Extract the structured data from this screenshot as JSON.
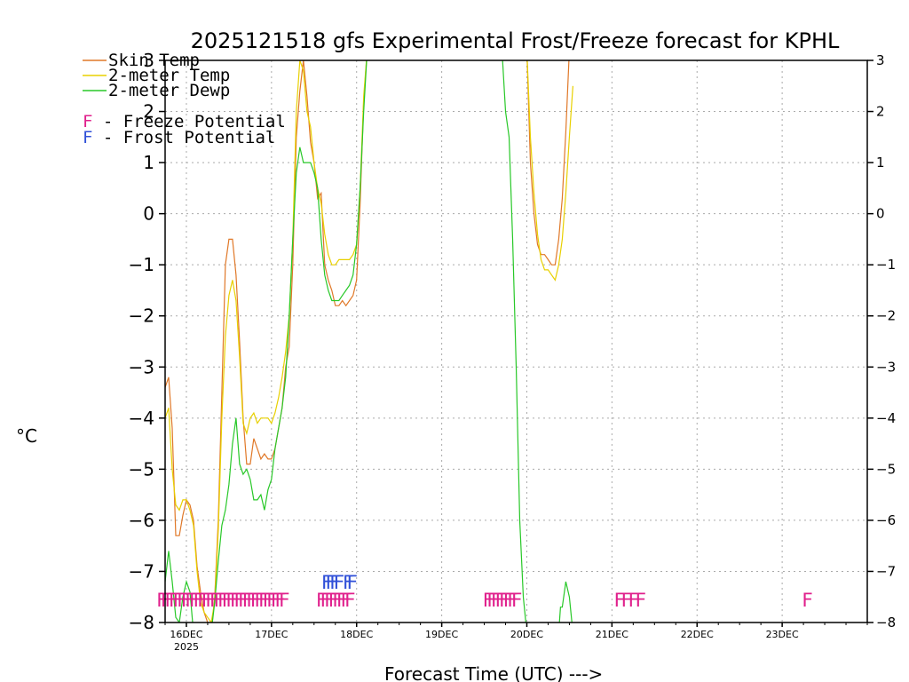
{
  "chart_data": {
    "type": "line",
    "title": "2025121518 gfs Experimental Frost/Freeze forecast for KPHL",
    "xlabel": "Forecast Time (UTC) --->",
    "ylabel": "°C",
    "ylim": [
      -8,
      3
    ],
    "xlim": [
      0,
      198
    ],
    "y_ticks": [
      "3",
      "2",
      "1",
      "0",
      "−1",
      "−2",
      "−3",
      "−4",
      "−5",
      "−6",
      "−7",
      "−8"
    ],
    "x_ticks": [
      {
        "hour": 6,
        "label": "16DEC",
        "sublabel": "2025"
      },
      {
        "hour": 30,
        "label": "17DEC"
      },
      {
        "hour": 54,
        "label": "18DEC"
      },
      {
        "hour": 78,
        "label": "19DEC"
      },
      {
        "hour": 102,
        "label": "20DEC"
      },
      {
        "hour": 126,
        "label": "21DEC"
      },
      {
        "hour": 150,
        "label": "22DEC"
      },
      {
        "hour": 174,
        "label": "23DEC"
      }
    ],
    "grid": true,
    "legend": [
      {
        "label": "Skin Temp",
        "color": "#e07828"
      },
      {
        "label": "2-meter Temp",
        "color": "#e8d000"
      },
      {
        "label": "2-meter Dewp",
        "color": "#28c828"
      }
    ],
    "legend_notes": [
      {
        "letter": "F",
        "text": " - Freeze Potential",
        "color": "#e0208c"
      },
      {
        "letter": "F",
        "text": " - Frost Potential",
        "color": "#3050d8"
      }
    ],
    "series": [
      {
        "name": "Skin Temp",
        "color": "#e07828",
        "points": [
          [
            0,
            -3.4
          ],
          [
            1,
            -3.2
          ],
          [
            2,
            -4.2
          ],
          [
            3,
            -6.3
          ],
          [
            4,
            -6.3
          ],
          [
            5,
            -5.9
          ],
          [
            6,
            -5.6
          ],
          [
            7,
            -5.7
          ],
          [
            8,
            -6.0
          ],
          [
            9,
            -6.9
          ],
          [
            10,
            -7.4
          ],
          [
            11,
            -7.8
          ],
          [
            12,
            -8.0
          ],
          [
            13,
            -8.2
          ],
          [
            14,
            -7.5
          ],
          [
            15,
            -6.0
          ],
          [
            16,
            -3.5
          ],
          [
            17,
            -1.0
          ],
          [
            18,
            -0.5
          ],
          [
            19,
            -0.5
          ],
          [
            20,
            -1.2
          ],
          [
            21,
            -2.5
          ],
          [
            22,
            -4.0
          ],
          [
            23,
            -4.9
          ],
          [
            24,
            -4.9
          ],
          [
            25,
            -4.4
          ],
          [
            26,
            -4.6
          ],
          [
            27,
            -4.8
          ],
          [
            28,
            -4.7
          ],
          [
            29,
            -4.8
          ],
          [
            30,
            -4.8
          ],
          [
            31,
            -4.6
          ],
          [
            32,
            -4.2
          ],
          [
            33,
            -3.8
          ],
          [
            34,
            -3.0
          ],
          [
            35,
            -2.6
          ],
          [
            36,
            -1.0
          ],
          [
            37,
            1.5
          ],
          [
            38,
            2.4
          ],
          [
            39,
            3.0
          ],
          [
            40,
            2.3
          ],
          [
            41,
            1.4
          ],
          [
            42,
            1.0
          ],
          [
            43,
            0.3
          ],
          [
            44,
            0.4
          ],
          [
            45,
            -1.0
          ],
          [
            46,
            -1.3
          ],
          [
            47,
            -1.5
          ],
          [
            48,
            -1.8
          ],
          [
            49,
            -1.8
          ],
          [
            50,
            -1.7
          ],
          [
            51,
            -1.8
          ],
          [
            52,
            -1.7
          ],
          [
            53,
            -1.6
          ],
          [
            54,
            -1.3
          ],
          [
            55,
            0.2
          ],
          [
            56,
            2.2
          ],
          [
            57,
            3.2
          ],
          [
            102,
            3.2
          ],
          [
            103,
            1.0
          ],
          [
            104,
            0.0
          ],
          [
            105,
            -0.6
          ],
          [
            106,
            -0.8
          ],
          [
            107,
            -0.8
          ],
          [
            108,
            -0.9
          ],
          [
            109,
            -1.0
          ],
          [
            110,
            -1.0
          ],
          [
            111,
            -0.5
          ],
          [
            112,
            0.3
          ],
          [
            113,
            1.6
          ],
          [
            114,
            3.2
          ]
        ]
      },
      {
        "name": "2-meter Temp",
        "color": "#e8d000",
        "points": [
          [
            0,
            -4.0
          ],
          [
            1,
            -3.8
          ],
          [
            2,
            -5.0
          ],
          [
            3,
            -5.7
          ],
          [
            4,
            -5.8
          ],
          [
            5,
            -5.6
          ],
          [
            6,
            -5.6
          ],
          [
            7,
            -5.8
          ],
          [
            8,
            -6.1
          ],
          [
            9,
            -7.0
          ],
          [
            10,
            -7.6
          ],
          [
            11,
            -7.8
          ],
          [
            12,
            -7.9
          ],
          [
            13,
            -8.0
          ],
          [
            14,
            -7.6
          ],
          [
            15,
            -6.2
          ],
          [
            16,
            -4.0
          ],
          [
            17,
            -2.4
          ],
          [
            18,
            -1.6
          ],
          [
            19,
            -1.3
          ],
          [
            20,
            -1.7
          ],
          [
            21,
            -2.8
          ],
          [
            22,
            -4.1
          ],
          [
            23,
            -4.3
          ],
          [
            24,
            -4.0
          ],
          [
            25,
            -3.9
          ],
          [
            26,
            -4.1
          ],
          [
            27,
            -4.0
          ],
          [
            28,
            -4.0
          ],
          [
            29,
            -4.0
          ],
          [
            30,
            -4.1
          ],
          [
            31,
            -3.9
          ],
          [
            32,
            -3.6
          ],
          [
            33,
            -3.2
          ],
          [
            34,
            -2.7
          ],
          [
            35,
            -2.0
          ],
          [
            36,
            -0.5
          ],
          [
            37,
            2.0
          ],
          [
            38,
            3.0
          ],
          [
            39,
            2.8
          ],
          [
            40,
            2.0
          ],
          [
            41,
            1.7
          ],
          [
            42,
            1.0
          ],
          [
            43,
            0.5
          ],
          [
            44,
            0.2
          ],
          [
            45,
            -0.4
          ],
          [
            46,
            -0.8
          ],
          [
            47,
            -1.0
          ],
          [
            48,
            -1.0
          ],
          [
            49,
            -0.9
          ],
          [
            50,
            -0.9
          ],
          [
            51,
            -0.9
          ],
          [
            52,
            -0.9
          ],
          [
            53,
            -0.8
          ],
          [
            54,
            -0.6
          ],
          [
            55,
            0.5
          ],
          [
            56,
            2.3
          ],
          [
            57,
            3.2
          ],
          [
            102,
            3.2
          ],
          [
            103,
            1.5
          ],
          [
            104,
            0.4
          ],
          [
            105,
            -0.4
          ],
          [
            106,
            -0.9
          ],
          [
            107,
            -1.1
          ],
          [
            108,
            -1.1
          ],
          [
            109,
            -1.2
          ],
          [
            110,
            -1.3
          ],
          [
            111,
            -1.0
          ],
          [
            112,
            -0.5
          ],
          [
            113,
            0.4
          ],
          [
            114,
            1.5
          ],
          [
            115,
            2.5
          ]
        ]
      },
      {
        "name": "2-meter Dewp",
        "color": "#28c828",
        "points": [
          [
            0,
            -7.2
          ],
          [
            1,
            -6.6
          ],
          [
            2,
            -7.2
          ],
          [
            3,
            -7.9
          ],
          [
            4,
            -8.0
          ],
          [
            5,
            -7.5
          ],
          [
            6,
            -7.2
          ],
          [
            7,
            -7.4
          ],
          [
            8,
            -8.2
          ],
          [
            13,
            -8.2
          ],
          [
            14,
            -7.6
          ],
          [
            15,
            -6.8
          ],
          [
            16,
            -6.1
          ],
          [
            17,
            -5.8
          ],
          [
            18,
            -5.3
          ],
          [
            19,
            -4.5
          ],
          [
            20,
            -4.0
          ],
          [
            21,
            -4.9
          ],
          [
            22,
            -5.1
          ],
          [
            23,
            -5.0
          ],
          [
            24,
            -5.2
          ],
          [
            25,
            -5.6
          ],
          [
            26,
            -5.6
          ],
          [
            27,
            -5.5
          ],
          [
            28,
            -5.8
          ],
          [
            29,
            -5.4
          ],
          [
            30,
            -5.2
          ],
          [
            31,
            -4.6
          ],
          [
            32,
            -4.2
          ],
          [
            33,
            -3.8
          ],
          [
            34,
            -3.2
          ],
          [
            35,
            -2.0
          ],
          [
            36,
            -0.5
          ],
          [
            37,
            0.8
          ],
          [
            38,
            1.3
          ],
          [
            39,
            1.0
          ],
          [
            40,
            1.0
          ],
          [
            41,
            1.0
          ],
          [
            42,
            0.8
          ],
          [
            43,
            0.5
          ],
          [
            44,
            -0.5
          ],
          [
            45,
            -1.2
          ],
          [
            46,
            -1.5
          ],
          [
            47,
            -1.7
          ],
          [
            48,
            -1.7
          ],
          [
            49,
            -1.7
          ],
          [
            50,
            -1.6
          ],
          [
            51,
            -1.5
          ],
          [
            52,
            -1.4
          ],
          [
            53,
            -1.2
          ],
          [
            54,
            -0.6
          ],
          [
            55,
            0.5
          ],
          [
            56,
            2.0
          ],
          [
            57,
            3.2
          ],
          [
            95,
            3.2
          ],
          [
            96,
            2.0
          ],
          [
            97,
            1.5
          ],
          [
            98,
            -0.5
          ],
          [
            99,
            -3.0
          ],
          [
            100,
            -6.0
          ],
          [
            101,
            -7.5
          ],
          [
            102,
            -8.2
          ],
          [
            111,
            -8.2
          ],
          [
            111.5,
            -7.7
          ],
          [
            112,
            -7.7
          ],
          [
            113,
            -7.2
          ],
          [
            114,
            -7.5
          ],
          [
            115,
            -8.2
          ]
        ]
      }
    ],
    "freeze_marks": {
      "color": "#e0208c",
      "y": -7.55,
      "groups": [
        {
          "start": -1,
          "end": 34,
          "step": 1.15
        },
        {
          "start": 44,
          "end": 53,
          "step": 1.15
        },
        {
          "start": 91,
          "end": 100,
          "step": 1.15
        },
        {
          "start": 128,
          "end": 135,
          "step": 2.0
        },
        {
          "start": 181,
          "end": 181,
          "step": 1
        }
      ]
    },
    "frost_marks": {
      "color": "#3050d8",
      "y": -7.2,
      "groups": [
        {
          "start": 45.5,
          "end": 50,
          "step": 1.15
        },
        {
          "start": 51.5,
          "end": 53,
          "step": 1.15
        }
      ]
    }
  }
}
